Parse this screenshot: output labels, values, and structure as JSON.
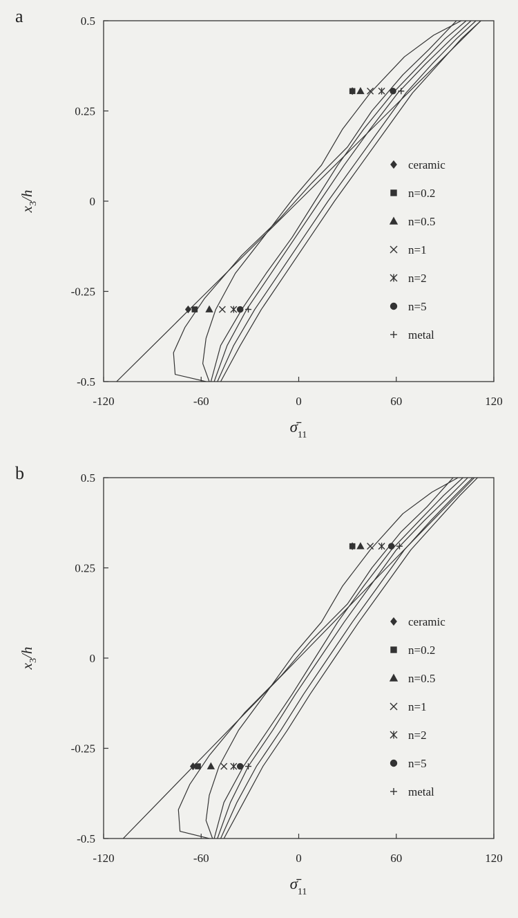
{
  "chart_data": [
    {
      "type": "line",
      "panel_label": "a",
      "xlabel": "σ̄",
      "xlabel_sub": "11",
      "ylabel_main": "x",
      "ylabel_sub": "3",
      "ylabel_tail": "/h",
      "xlim": [
        -120,
        120
      ],
      "ylim": [
        -0.5,
        0.5
      ],
      "x_ticks": [
        -120,
        -60,
        0,
        60,
        120
      ],
      "x_tick_labels": [
        "-120",
        "-60",
        "0",
        "60",
        "120"
      ],
      "y_ticks": [
        0.5,
        0.25,
        0,
        -0.25,
        -0.5
      ],
      "y_tick_labels": [
        "0.5",
        "0.25",
        "0",
        "-0.25",
        "-0.5"
      ],
      "grid": false,
      "legend_position": "right",
      "series": [
        {
          "name": "ceramic",
          "marker": "diamond",
          "x": [
            -112,
            -84,
            -56,
            -28,
            0,
            28,
            56,
            84,
            112
          ],
          "y": [
            -0.5,
            -0.375,
            -0.25,
            -0.125,
            0,
            0.125,
            0.25,
            0.375,
            0.5
          ],
          "marker_points": [
            [
              33,
              0.305
            ],
            [
              -68,
              -0.3
            ]
          ]
        },
        {
          "name": "n=0.2",
          "marker": "square",
          "x": [
            -57,
            -76,
            -77,
            -70,
            -58,
            -35,
            -12,
            8,
            30,
            45,
            64,
            80,
            97
          ],
          "y": [
            -0.5,
            -0.48,
            -0.42,
            -0.35,
            -0.27,
            -0.15,
            -0.05,
            0.05,
            0.15,
            0.25,
            0.35,
            0.42,
            0.5
          ],
          "marker_points": [
            [
              33,
              0.305
            ],
            [
              -64,
              -0.3
            ]
          ]
        },
        {
          "name": "n=0.5",
          "marker": "triangle",
          "x": [
            -55,
            -59,
            -57,
            -51,
            -39,
            -20,
            -3,
            14,
            27,
            44,
            65,
            83,
            100
          ],
          "y": [
            -0.5,
            -0.45,
            -0.38,
            -0.3,
            -0.2,
            -0.09,
            0.01,
            0.1,
            0.2,
            0.3,
            0.4,
            0.46,
            0.5
          ],
          "marker_points": [
            [
              38,
              0.305
            ],
            [
              -55,
              -0.3
            ]
          ]
        },
        {
          "name": "n=1",
          "marker": "x",
          "x": [
            -54,
            -48,
            -35,
            -20,
            -4,
            10,
            24,
            40,
            58,
            75,
            90,
            103
          ],
          "y": [
            -0.5,
            -0.4,
            -0.3,
            -0.2,
            -0.1,
            0,
            0.1,
            0.2,
            0.3,
            0.38,
            0.45,
            0.5
          ],
          "marker_points": [
            [
              44,
              0.305
            ],
            [
              -47,
              -0.3
            ]
          ]
        },
        {
          "name": "n=2",
          "marker": "asterisk",
          "x": [
            -52,
            -44,
            -32,
            -17,
            -2,
            13,
            28,
            44,
            61,
            78,
            94,
            106
          ],
          "y": [
            -0.5,
            -0.4,
            -0.3,
            -0.2,
            -0.1,
            0,
            0.1,
            0.2,
            0.3,
            0.38,
            0.45,
            0.5
          ],
          "marker_points": [
            [
              51,
              0.305
            ],
            [
              -40,
              -0.3
            ]
          ]
        },
        {
          "name": "n=5",
          "marker": "circle",
          "x": [
            -50,
            -40,
            -27,
            -12,
            3,
            18,
            34,
            50,
            66,
            82,
            97,
            109
          ],
          "y": [
            -0.5,
            -0.4,
            -0.3,
            -0.2,
            -0.1,
            0,
            0.1,
            0.2,
            0.3,
            0.38,
            0.45,
            0.5
          ],
          "marker_points": [
            [
              58,
              0.305
            ],
            [
              -36,
              -0.3
            ]
          ]
        },
        {
          "name": "metal",
          "marker": "plus",
          "x": [
            -48,
            -36,
            -23,
            -8,
            7,
            22,
            38,
            54,
            70,
            86,
            100,
            112
          ],
          "y": [
            -0.5,
            -0.4,
            -0.3,
            -0.2,
            -0.1,
            0,
            0.1,
            0.2,
            0.3,
            0.38,
            0.45,
            0.5
          ],
          "marker_points": [
            [
              63,
              0.305
            ],
            [
              -31,
              -0.3
            ]
          ]
        }
      ]
    },
    {
      "type": "line",
      "panel_label": "b",
      "xlabel": "σ̄",
      "xlabel_sub": "11",
      "ylabel_main": "x",
      "ylabel_sub": "3",
      "ylabel_tail": "/h",
      "xlim": [
        -120,
        120
      ],
      "ylim": [
        -0.5,
        0.5
      ],
      "x_ticks": [
        -120,
        -60,
        0,
        60,
        120
      ],
      "x_tick_labels": [
        "-120",
        "-60",
        "0",
        "60",
        "120"
      ],
      "y_ticks": [
        0.5,
        0.25,
        0,
        -0.25,
        -0.5
      ],
      "y_tick_labels": [
        "0.5",
        "0.25",
        "0",
        "-0.25",
        "-0.5"
      ],
      "grid": false,
      "legend_position": "right",
      "series": [
        {
          "name": "ceramic",
          "marker": "diamond",
          "x": [
            -108,
            -81,
            -54,
            -27,
            0,
            27,
            54,
            81,
            108
          ],
          "y": [
            -0.5,
            -0.375,
            -0.25,
            -0.125,
            0,
            0.125,
            0.25,
            0.375,
            0.5
          ],
          "marker_points": [
            [
              33,
              0.31
            ],
            [
              -65,
              -0.3
            ]
          ]
        },
        {
          "name": "n=0.2",
          "marker": "square",
          "x": [
            -55,
            -73,
            -74,
            -67,
            -55,
            -33,
            -11,
            8,
            30,
            45,
            63,
            79,
            95
          ],
          "y": [
            -0.5,
            -0.48,
            -0.42,
            -0.35,
            -0.27,
            -0.15,
            -0.05,
            0.05,
            0.15,
            0.25,
            0.35,
            0.42,
            0.5
          ],
          "marker_points": [
            [
              33,
              0.31
            ],
            [
              -62,
              -0.3
            ]
          ]
        },
        {
          "name": "n=0.5",
          "marker": "triangle",
          "x": [
            -53,
            -57,
            -55,
            -49,
            -37,
            -19,
            -3,
            14,
            27,
            44,
            64,
            82,
            98
          ],
          "y": [
            -0.5,
            -0.45,
            -0.38,
            -0.3,
            -0.2,
            -0.09,
            0.01,
            0.1,
            0.2,
            0.3,
            0.4,
            0.46,
            0.5
          ],
          "marker_points": [
            [
              38,
              0.31
            ],
            [
              -54,
              -0.3
            ]
          ]
        },
        {
          "name": "n=1",
          "marker": "x",
          "x": [
            -52,
            -46,
            -34,
            -19,
            -4,
            10,
            24,
            40,
            57,
            74,
            89,
            101
          ],
          "y": [
            -0.5,
            -0.4,
            -0.3,
            -0.2,
            -0.1,
            0,
            0.1,
            0.2,
            0.3,
            0.38,
            0.45,
            0.5
          ],
          "marker_points": [
            [
              44,
              0.31
            ],
            [
              -46,
              -0.3
            ]
          ]
        },
        {
          "name": "n=2",
          "marker": "asterisk",
          "x": [
            -50,
            -42,
            -31,
            -16,
            -2,
            13,
            28,
            44,
            60,
            77,
            93,
            104
          ],
          "y": [
            -0.5,
            -0.4,
            -0.3,
            -0.2,
            -0.1,
            0,
            0.1,
            0.2,
            0.3,
            0.38,
            0.45,
            0.5
          ],
          "marker_points": [
            [
              51,
              0.31
            ],
            [
              -40,
              -0.3
            ]
          ]
        },
        {
          "name": "n=5",
          "marker": "circle",
          "x": [
            -48,
            -38,
            -26,
            -11,
            3,
            18,
            33,
            49,
            65,
            81,
            96,
            107
          ],
          "y": [
            -0.5,
            -0.4,
            -0.3,
            -0.2,
            -0.1,
            0,
            0.1,
            0.2,
            0.3,
            0.38,
            0.45,
            0.5
          ],
          "marker_points": [
            [
              57,
              0.31
            ],
            [
              -36,
              -0.3
            ]
          ]
        },
        {
          "name": "metal",
          "marker": "plus",
          "x": [
            -46,
            -34,
            -22,
            -7,
            7,
            22,
            37,
            53,
            69,
            85,
            99,
            110
          ],
          "y": [
            -0.5,
            -0.4,
            -0.3,
            -0.2,
            -0.1,
            0,
            0.1,
            0.2,
            0.3,
            0.38,
            0.45,
            0.5
          ],
          "marker_points": [
            [
              62,
              0.31
            ],
            [
              -31,
              -0.3
            ]
          ]
        }
      ]
    }
  ]
}
